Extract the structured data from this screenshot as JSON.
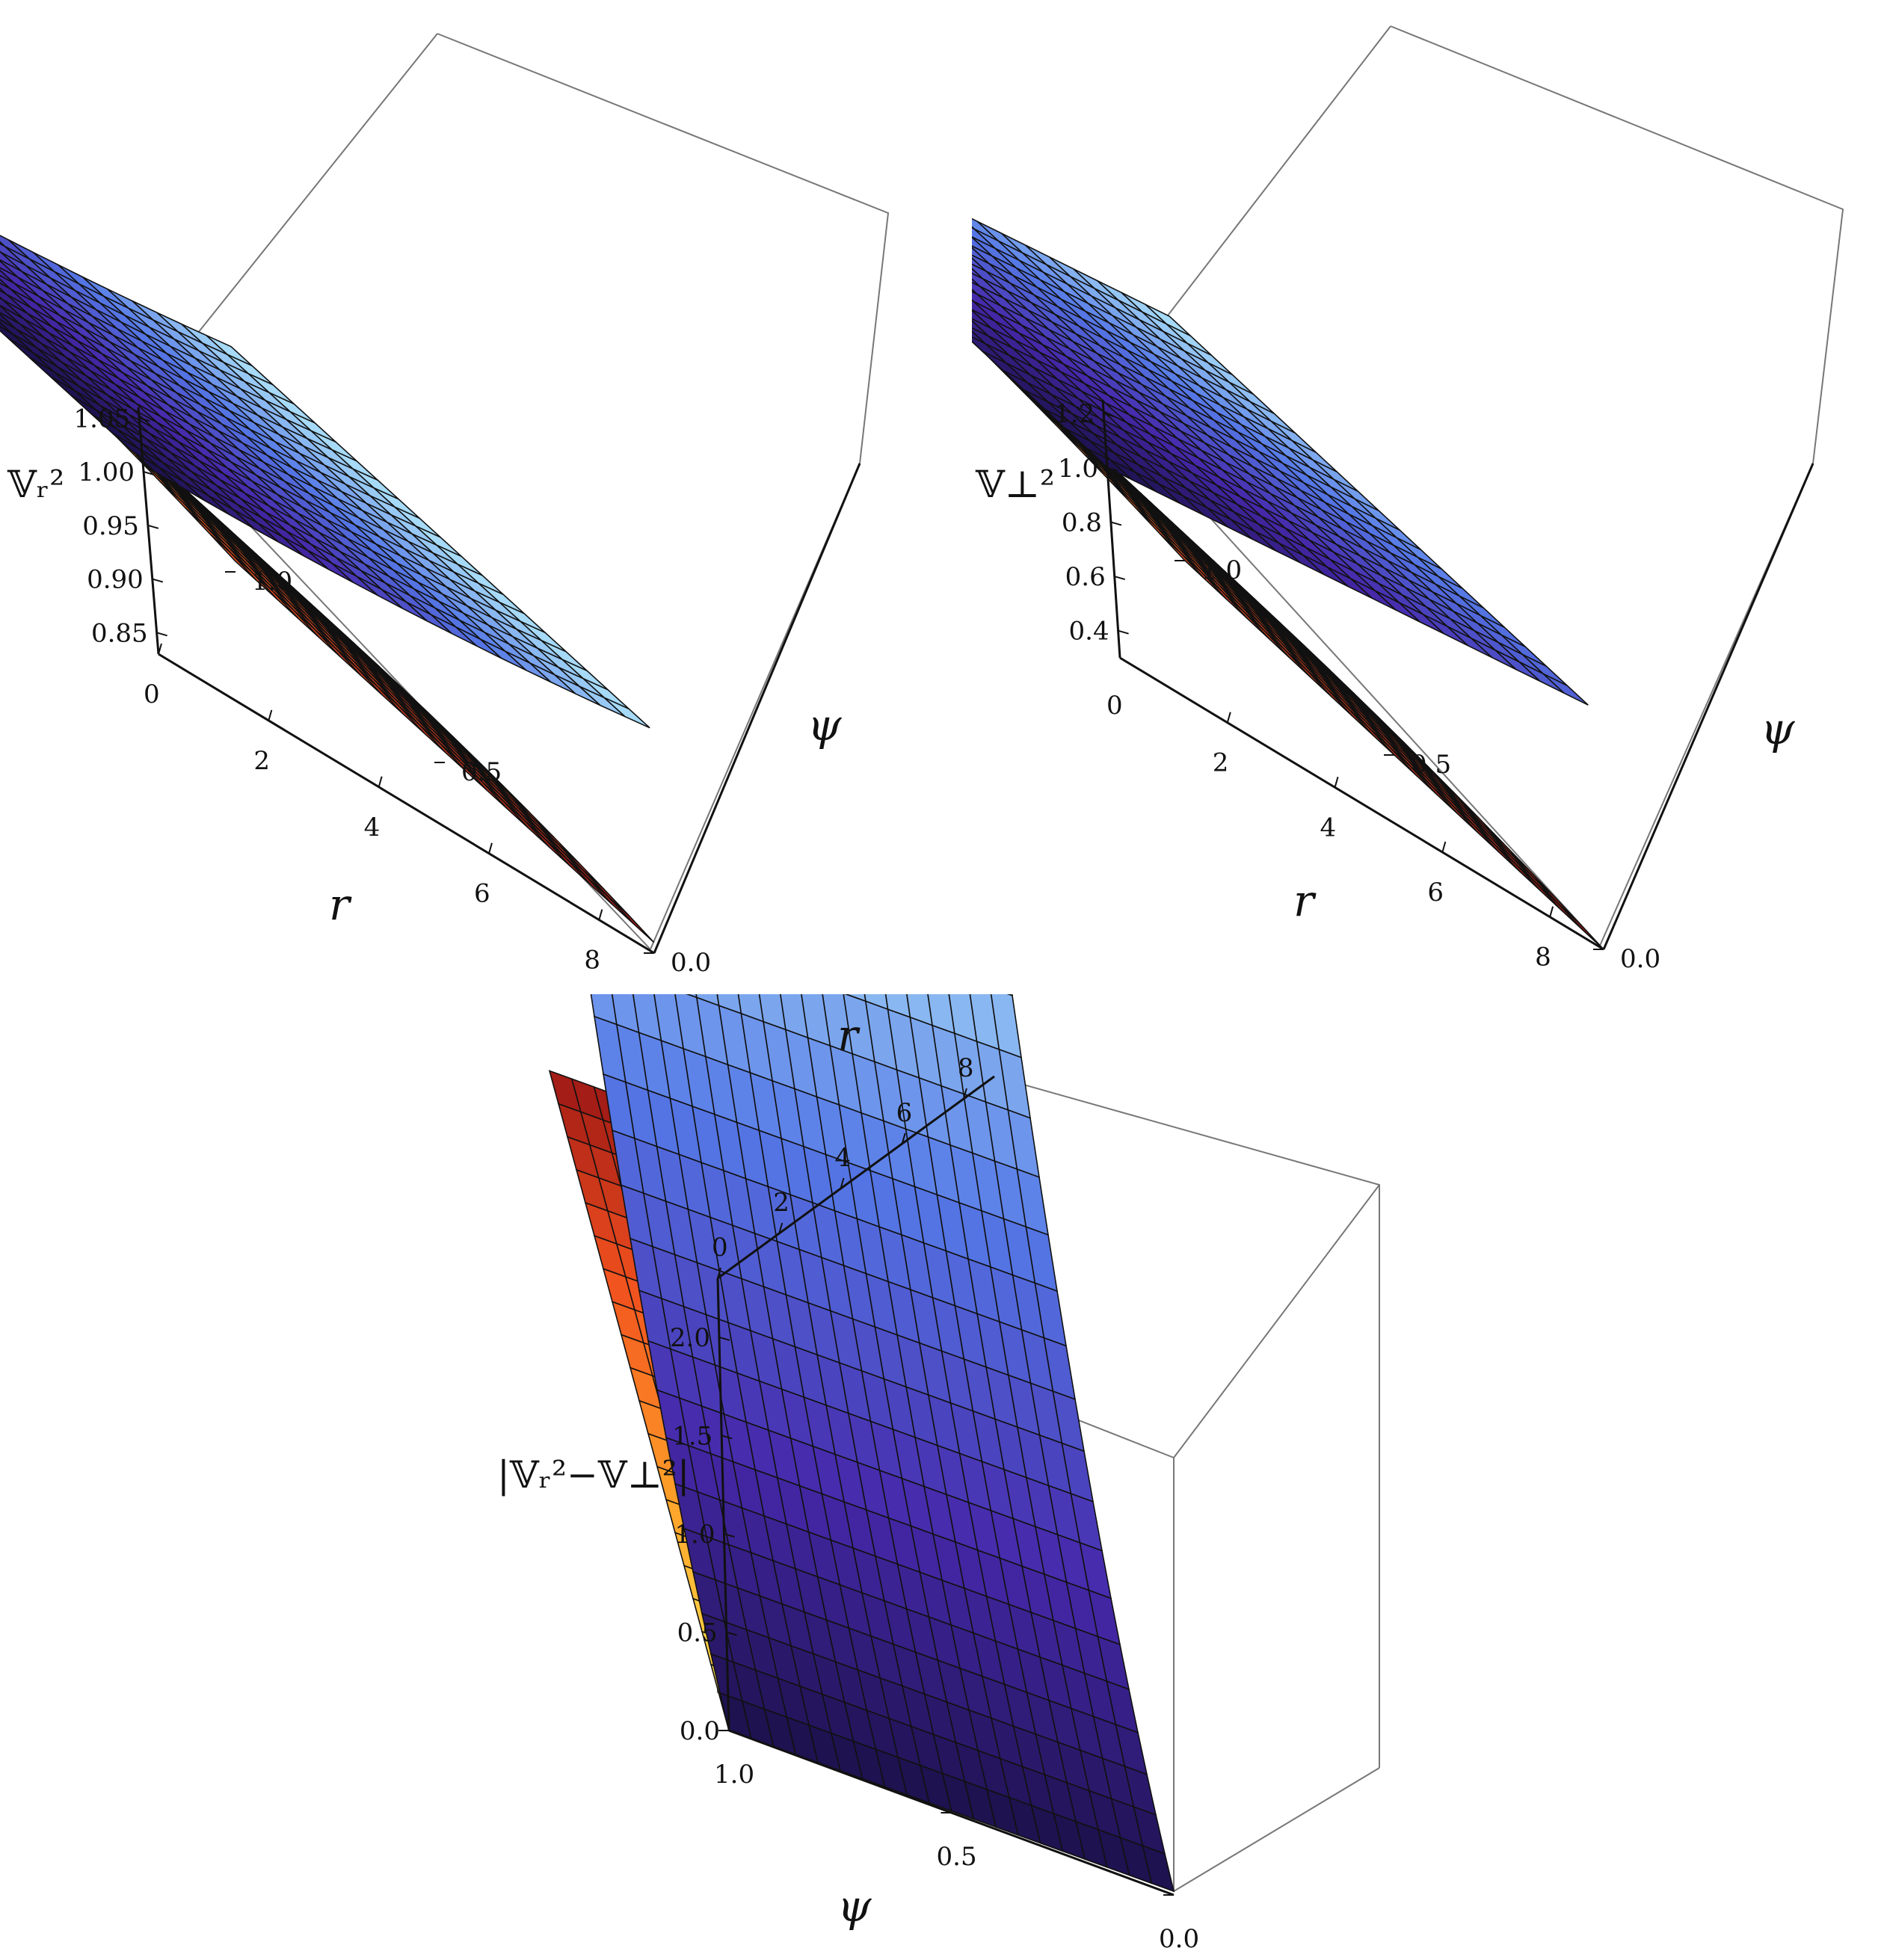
{
  "chart_data": [
    {
      "type": "surface3d",
      "id": "panel-a",
      "title": "",
      "xlabel": "r",
      "ylabel": "ψ",
      "zlabel": "𝕍ᵣ²",
      "x_range": [
        0,
        9
      ],
      "y_range": [
        0,
        1
      ],
      "z_range": [
        0.83,
        1.06
      ],
      "x_ticks": [
        "0",
        "2",
        "4",
        "6",
        "8"
      ],
      "y_ticks": [
        "0.0",
        "0.5",
        "1.0"
      ],
      "z_ticks": [
        "0.85",
        "0.90",
        "0.95",
        "1.00",
        "1.05"
      ],
      "grid_lines": 20,
      "surfaces": [
        {
          "name": "",
          "color_scheme": "blue",
          "z_at_r0": 1.0,
          "z_at_r9": 1.04,
          "curvature": 0.8
        },
        {
          "name": "",
          "color_scheme": "orange",
          "z_at_r0": 1.0,
          "z_at_r9": 0.84,
          "curvature": 0.4
        }
      ]
    },
    {
      "type": "surface3d",
      "id": "panel-b",
      "title": "",
      "xlabel": "r",
      "ylabel": "ψ",
      "zlabel": "𝕍⊥²",
      "x_range": [
        0,
        9
      ],
      "y_range": [
        0,
        1
      ],
      "z_range": [
        0.3,
        1.25
      ],
      "x_ticks": [
        "2",
        "4",
        "6",
        "8"
      ],
      "x_zero_label": "0",
      "y_ticks": [
        "0.0",
        "0.5",
        "1.0"
      ],
      "z_ticks": [
        "0.4",
        "0.6",
        "0.8",
        "1.0",
        "1.2"
      ],
      "grid_lines": 20,
      "surfaces": [
        {
          "name": "",
          "color_scheme": "blue",
          "z_at_r0": 1.0,
          "z_at_r9": 1.2,
          "curvature": 0.0
        },
        {
          "name": "",
          "color_scheme": "orange",
          "z_at_r0": 1.0,
          "z_at_r9": 0.3,
          "curvature": 0.3
        }
      ]
    },
    {
      "type": "surface3d",
      "id": "panel-c",
      "title": "",
      "xlabel": "r",
      "ylabel": "ψ",
      "zlabel": "|𝕍ᵣ²−𝕍⊥²|",
      "x_range": [
        0,
        9
      ],
      "y_range": [
        0,
        1
      ],
      "z_range": [
        0,
        2.3
      ],
      "x_ticks": [
        "0",
        "2",
        "4",
        "6",
        "8"
      ],
      "y_ticks": [
        "1.0",
        "0.5",
        "0.0"
      ],
      "z_ticks": [
        "0.0",
        "0.5",
        "1.0",
        "1.5",
        "2.0"
      ],
      "grid_lines": 20,
      "surfaces": [
        {
          "name": "",
          "color_scheme": "blue",
          "z_at_r0": 0.0,
          "z_at_r9": 2.2,
          "curvature": 0.7
        },
        {
          "name": "",
          "color_scheme": "orange",
          "z_at_r0": 0.0,
          "z_at_r9": 0.25,
          "curvature": 0.0
        }
      ]
    }
  ]
}
